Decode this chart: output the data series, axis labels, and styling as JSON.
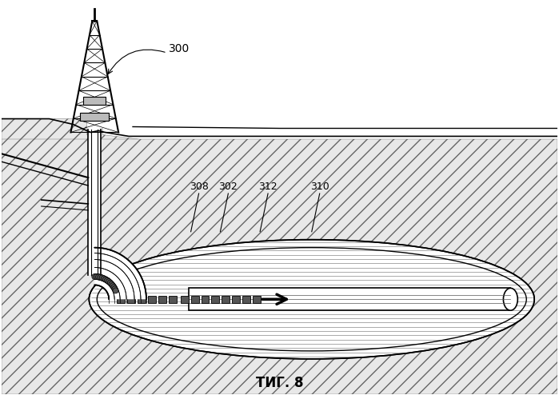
{
  "bg_color": "#ffffff",
  "title": "ΤИГ. 8",
  "title_fontsize": 12,
  "label_300": "300",
  "label_308": "308",
  "label_302": "302",
  "label_312": "312",
  "label_310": "310",
  "line_color": "#000000",
  "fig_width": 6.99,
  "fig_height": 4.94,
  "dpi": 100
}
